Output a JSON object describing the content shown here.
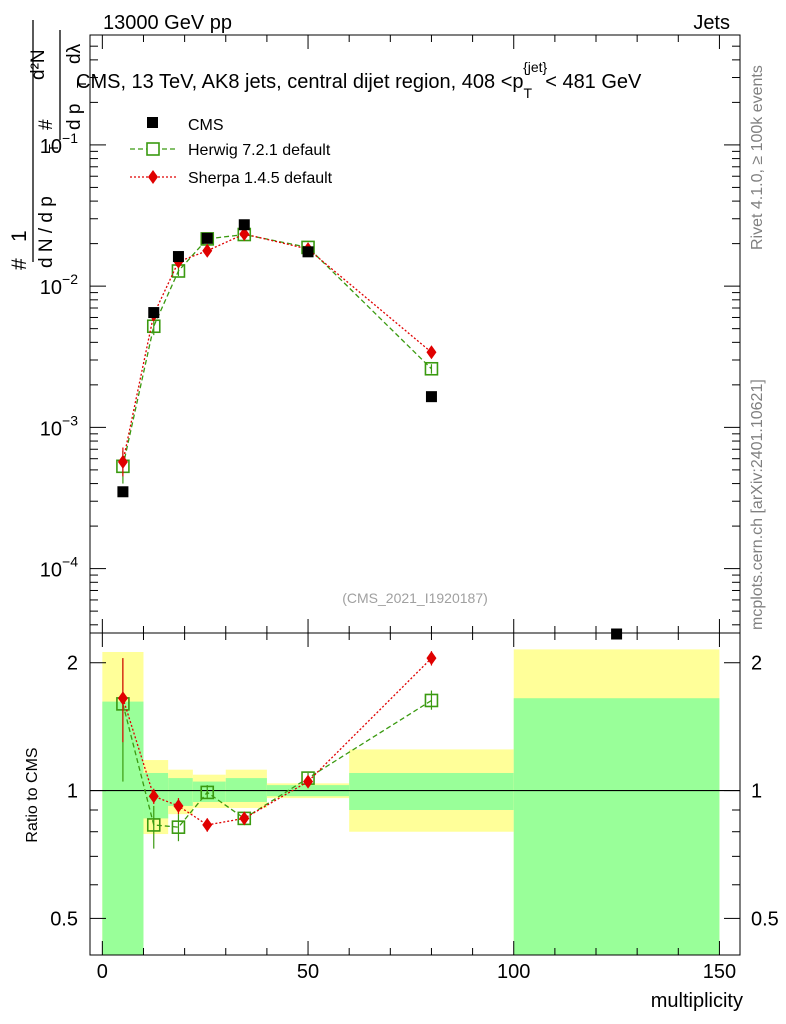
{
  "header": {
    "left": "13000 GeV pp",
    "right": "Jets",
    "side_top": "Rivet 4.1.0, ≥ 100k events",
    "side_bottom": "mcplots.cern.ch [arXiv:2401.10621]",
    "analysis": "(CMS_2021_I1920187)"
  },
  "chart_data": [
    {
      "type": "scatter",
      "title": "CMS, 13 TeV, AK8 jets, central dijet region, 408 <p_T^{jet}< 481 GeV",
      "title_parts": {
        "main": "CMS, 13 TeV, AK8 jets, central dijet region, 408 <p",
        "sub": "T",
        "sup": "{jet}",
        "tail": "< 481 GeV"
      },
      "ylabel": "1/(dN/dp_T) d²N/(dp_T dλ)",
      "ylabel_parts": {
        "hash": "#",
        "one": "1",
        "dN": "d N / d p",
        "T": "T",
        "d2N": "d²N",
        "dp": "d p",
        "dl": "dλ"
      },
      "yscale": "log",
      "ylim": [
        3.5e-05,
        0.6
      ],
      "xlim": [
        -3,
        155
      ],
      "ytick_labels": [
        {
          "v": 0.0001,
          "base": "10",
          "exp": "−4"
        },
        {
          "v": 0.001,
          "base": "10",
          "exp": "−3"
        },
        {
          "v": 0.01,
          "base": "10",
          "exp": "−2"
        },
        {
          "v": 0.1,
          "base": "10",
          "exp": "−1"
        }
      ],
      "legend": {
        "placement": "top-left",
        "entries": [
          "CMS",
          "Herwig 7.2.1 default",
          "Sherpa 1.4.5 default"
        ]
      },
      "series": [
        {
          "name": "CMS",
          "color": "#000000",
          "marker": "square-filled",
          "x": [
            5,
            12.5,
            18.5,
            25.5,
            34.5,
            50,
            80,
            125
          ],
          "y": [
            0.00035,
            0.0065,
            0.0162,
            0.0218,
            0.0272,
            0.0175,
            0.00165,
            3.3e-05
          ]
        },
        {
          "name": "Herwig 7.2.1 default",
          "color": "#3a9a10",
          "marker": "square-open",
          "line": "dashed",
          "x": [
            5,
            12.5,
            18.5,
            25.5,
            34.5,
            50,
            80
          ],
          "y": [
            0.00053,
            0.0052,
            0.0128,
            0.0216,
            0.0232,
            0.0188,
            0.0026
          ],
          "err_lo": [
            0.0004,
            0.0045,
            0.0118,
            0.0207,
            0.0225,
            0.0182,
            0.0024
          ],
          "err_hi": [
            0.00068,
            0.006,
            0.0138,
            0.0225,
            0.0239,
            0.0194,
            0.0028
          ]
        },
        {
          "name": "Sherpa 1.4.5 default",
          "color": "#e00000",
          "marker": "diamond",
          "line": "dotted",
          "x": [
            5,
            12.5,
            18.5,
            25.5,
            34.5,
            50,
            80
          ],
          "y": [
            0.00057,
            0.0063,
            0.0149,
            0.0178,
            0.0234,
            0.0183,
            0.0034
          ],
          "err_lo": [
            0.00045,
            0.0058,
            0.0143,
            0.0172,
            0.0228,
            0.0178,
            0.0032
          ],
          "err_hi": [
            0.00072,
            0.0068,
            0.0155,
            0.0184,
            0.024,
            0.0188,
            0.0036
          ]
        }
      ]
    },
    {
      "type": "scatter",
      "ylabel": "Ratio to CMS",
      "xlabel": "multiplicity",
      "yscale": "log",
      "ylim": [
        0.41,
        2.35
      ],
      "xlim": [
        -3,
        155
      ],
      "yticks": [
        0.5,
        1,
        2
      ],
      "ytick_labels": [
        "0.5",
        "1",
        "2"
      ],
      "xticks": [
        0,
        50,
        100,
        150
      ],
      "xtick_labels": [
        "0",
        "50",
        "100",
        "150"
      ],
      "reference": 1,
      "bands": [
        {
          "x0": 0,
          "x1": 10,
          "green": [
            0.41,
            1.62
          ],
          "yellow": [
            0.41,
            2.12
          ]
        },
        {
          "x0": 10,
          "x1": 16,
          "green": [
            0.86,
            1.1
          ],
          "yellow": [
            0.79,
            1.18
          ]
        },
        {
          "x0": 16,
          "x1": 22,
          "green": [
            0.92,
            1.07
          ],
          "yellow": [
            0.88,
            1.12
          ]
        },
        {
          "x0": 22,
          "x1": 30,
          "green": [
            0.94,
            1.05
          ],
          "yellow": [
            0.91,
            1.09
          ]
        },
        {
          "x0": 30,
          "x1": 40,
          "green": [
            0.94,
            1.07
          ],
          "yellow": [
            0.91,
            1.12
          ]
        },
        {
          "x0": 40,
          "x1": 60,
          "green": [
            0.97,
            1.03
          ],
          "yellow": [
            0.96,
            1.04
          ]
        },
        {
          "x0": 60,
          "x1": 100,
          "green": [
            0.9,
            1.1
          ],
          "yellow": [
            0.8,
            1.25
          ]
        },
        {
          "x0": 100,
          "x1": 150,
          "green": [
            0.41,
            1.65
          ],
          "yellow": [
            0.41,
            2.15
          ]
        }
      ],
      "series": [
        {
          "name": "Herwig 7.2.1 default",
          "color": "#3a9a10",
          "x": [
            5,
            12.5,
            18.5,
            25.5,
            34.5,
            50,
            80
          ],
          "y": [
            1.6,
            0.83,
            0.82,
            0.99,
            0.86,
            1.07,
            1.63
          ],
          "err_lo": [
            1.05,
            0.73,
            0.76,
            0.96,
            0.83,
            1.04,
            1.55
          ],
          "err_hi": [
            2.05,
            0.92,
            0.88,
            1.03,
            0.89,
            1.1,
            1.72
          ]
        },
        {
          "name": "Sherpa 1.4.5 default",
          "color": "#e00000",
          "x": [
            5,
            12.5,
            18.5,
            25.5,
            34.5,
            50,
            80
          ],
          "y": [
            1.65,
            0.97,
            0.92,
            0.83,
            0.86,
            1.05,
            2.05
          ],
          "err_lo": [
            1.3,
            0.93,
            0.88,
            0.8,
            0.83,
            1.02,
            1.97
          ],
          "err_hi": [
            2.05,
            1.01,
            0.96,
            0.86,
            0.89,
            1.08,
            2.13
          ]
        }
      ]
    }
  ]
}
